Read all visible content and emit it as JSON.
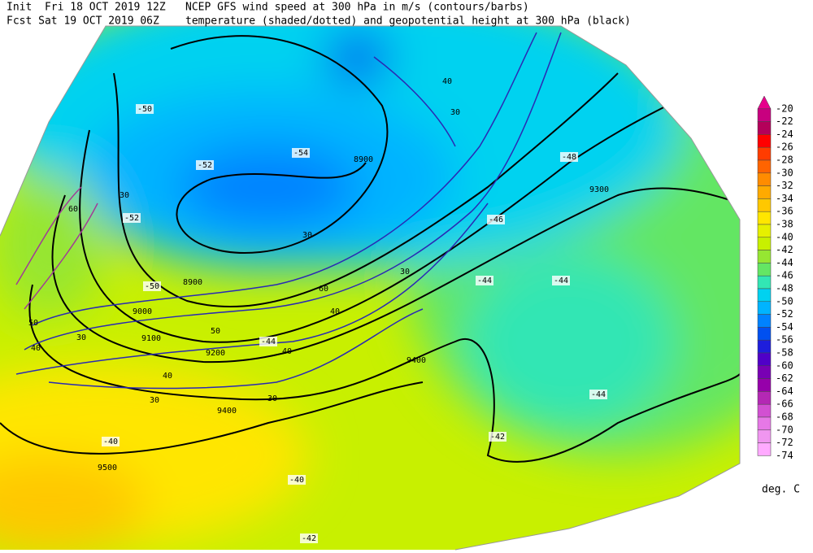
{
  "header": {
    "init": "Init  Fri 18 OCT 2019 12Z",
    "fcst": "Fcst Sat 19 OCT 2019 06Z",
    "title_line1": "NCEP GFS wind speed at 300 hPa in m/s (contours/barbs)",
    "title_line2": "temperature (shaded/dotted) and geopotential height at 300 hPa (black)"
  },
  "colorbar": {
    "levels": [
      -20,
      -22,
      -24,
      -26,
      -28,
      -30,
      -32,
      -34,
      -36,
      -38,
      -40,
      -42,
      -44,
      -46,
      -48,
      -50,
      -52,
      -54,
      -56,
      -58,
      -60,
      -62,
      -64,
      -66,
      -68,
      -70,
      -72,
      -74
    ],
    "colors": [
      "#e6008c",
      "#c8007f",
      "#b4005a",
      "#ff0000",
      "#ff3c00",
      "#ff6400",
      "#ff8c00",
      "#ffaa00",
      "#ffc800",
      "#ffe600",
      "#e6f000",
      "#c8f000",
      "#96e632",
      "#64e664",
      "#32e6b4",
      "#00d2f0",
      "#00b4ff",
      "#0082ff",
      "#0050f0",
      "#1e1edc",
      "#5000c8",
      "#7800b4",
      "#9600aa",
      "#b428b4",
      "#d250d2",
      "#e678e6",
      "#f096f0",
      "#ffaaff"
    ],
    "unit": "deg. C"
  },
  "map_labels": {
    "height": [
      "8900",
      "8900",
      "9000",
      "9100",
      "9200",
      "9300",
      "9400",
      "9400",
      "9500"
    ],
    "wind": [
      "30",
      "30",
      "30",
      "30",
      "30",
      "30",
      "30",
      "40",
      "40",
      "40",
      "40",
      "40",
      "50",
      "50",
      "60",
      "60"
    ],
    "temperature": [
      "-50",
      "-50",
      "-52",
      "-52",
      "-54",
      "-48",
      "-46",
      "-44",
      "-44",
      "-44",
      "-44",
      "-42",
      "-40",
      "-40",
      "-42"
    ]
  }
}
